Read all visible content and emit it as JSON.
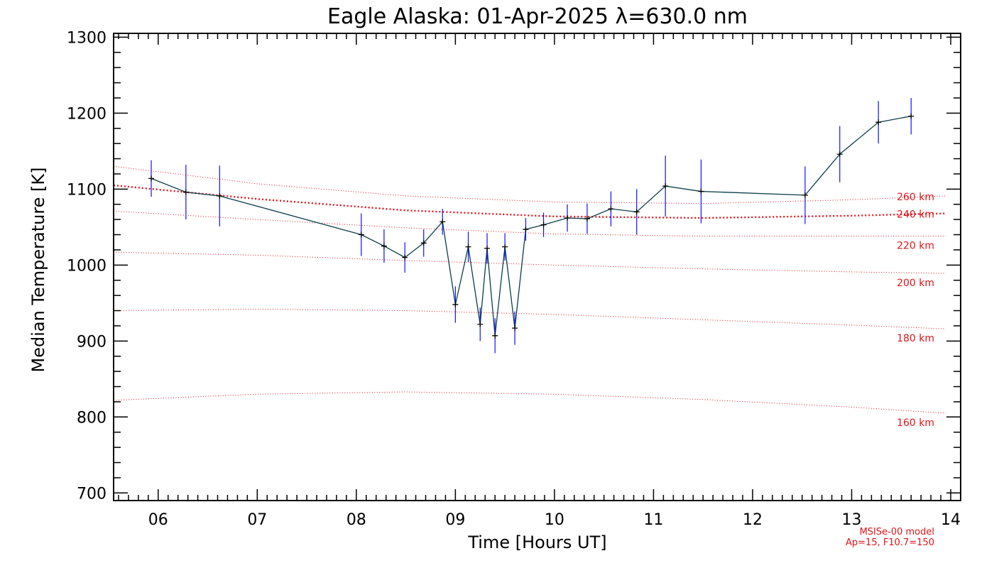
{
  "colors": {
    "background": "#ffffff",
    "axis": "#000000",
    "data_line": "#0b3d4a",
    "error_bar": "#1010ff",
    "model": "#e0151b",
    "marker": "#000000"
  },
  "chart_data": {
    "type": "line",
    "title": "Eagle Alaska: 01-Apr-2025 λ=630.0 nm",
    "xlabel": "Time [Hours UT]",
    "ylabel": "Median Temperature [K]",
    "xlim": [
      5.55,
      14.1
    ],
    "ylim": [
      690,
      1305
    ],
    "x_ticks": [
      6,
      7,
      8,
      9,
      10,
      11,
      12,
      13,
      14
    ],
    "x_tick_labels": [
      "06",
      "07",
      "08",
      "09",
      "10",
      "11",
      "12",
      "13",
      "14"
    ],
    "y_ticks": [
      700,
      800,
      900,
      1000,
      1100,
      1200,
      1300
    ],
    "y_tick_labels": [
      "700",
      "800",
      "900",
      "1000",
      "1100",
      "1200",
      "1300"
    ],
    "series": [
      {
        "name": "Median Temperature",
        "x": [
          5.93,
          6.28,
          6.62,
          8.05,
          8.28,
          8.49,
          8.68,
          8.87,
          9.0,
          9.13,
          9.25,
          9.32,
          9.4,
          9.5,
          9.6,
          9.71,
          9.89,
          10.13,
          10.33,
          10.57,
          10.83,
          11.12,
          11.48,
          12.53,
          12.88,
          13.27,
          13.6
        ],
        "y": [
          1114,
          1096,
          1091,
          1040,
          1025,
          1010,
          1029,
          1057,
          948,
          1024,
          922,
          1022,
          907,
          1024,
          917,
          1047,
          1053,
          1062,
          1061,
          1074,
          1070,
          1104,
          1097,
          1092,
          1146,
          1188,
          1196
        ],
        "err": [
          24,
          36,
          40,
          28,
          22,
          20,
          18,
          17,
          24,
          20,
          22,
          20,
          23,
          18,
          22,
          15,
          16,
          18,
          20,
          23,
          30,
          40,
          42,
          38,
          37,
          28,
          24
        ]
      }
    ],
    "model": {
      "name": "MSISe-00 model",
      "ap_f107": "Ap=15, F10.7=150",
      "x": [
        5.55,
        7.0,
        8.5,
        10.0,
        11.5,
        13.0,
        13.95
      ],
      "curves": [
        {
          "label": "160 km",
          "values": [
            822,
            830,
            833,
            830,
            823,
            813,
            805
          ]
        },
        {
          "label": "180 km",
          "values": [
            940,
            942,
            940,
            935,
            928,
            921,
            916
          ]
        },
        {
          "label": "200 km",
          "values": [
            1017,
            1013,
            1006,
            1000,
            995,
            991,
            989
          ]
        },
        {
          "label": "220 km",
          "values": [
            1071,
            1060,
            1049,
            1041,
            1038,
            1038,
            1038
          ]
        },
        {
          "label": "240 km",
          "values": [
            1105,
            1087,
            1072,
            1064,
            1062,
            1065,
            1068
          ]
        },
        {
          "label": "260 km",
          "values": [
            1130,
            1107,
            1091,
            1083,
            1081,
            1086,
            1091
          ]
        }
      ],
      "emphasized": "240 km"
    }
  }
}
